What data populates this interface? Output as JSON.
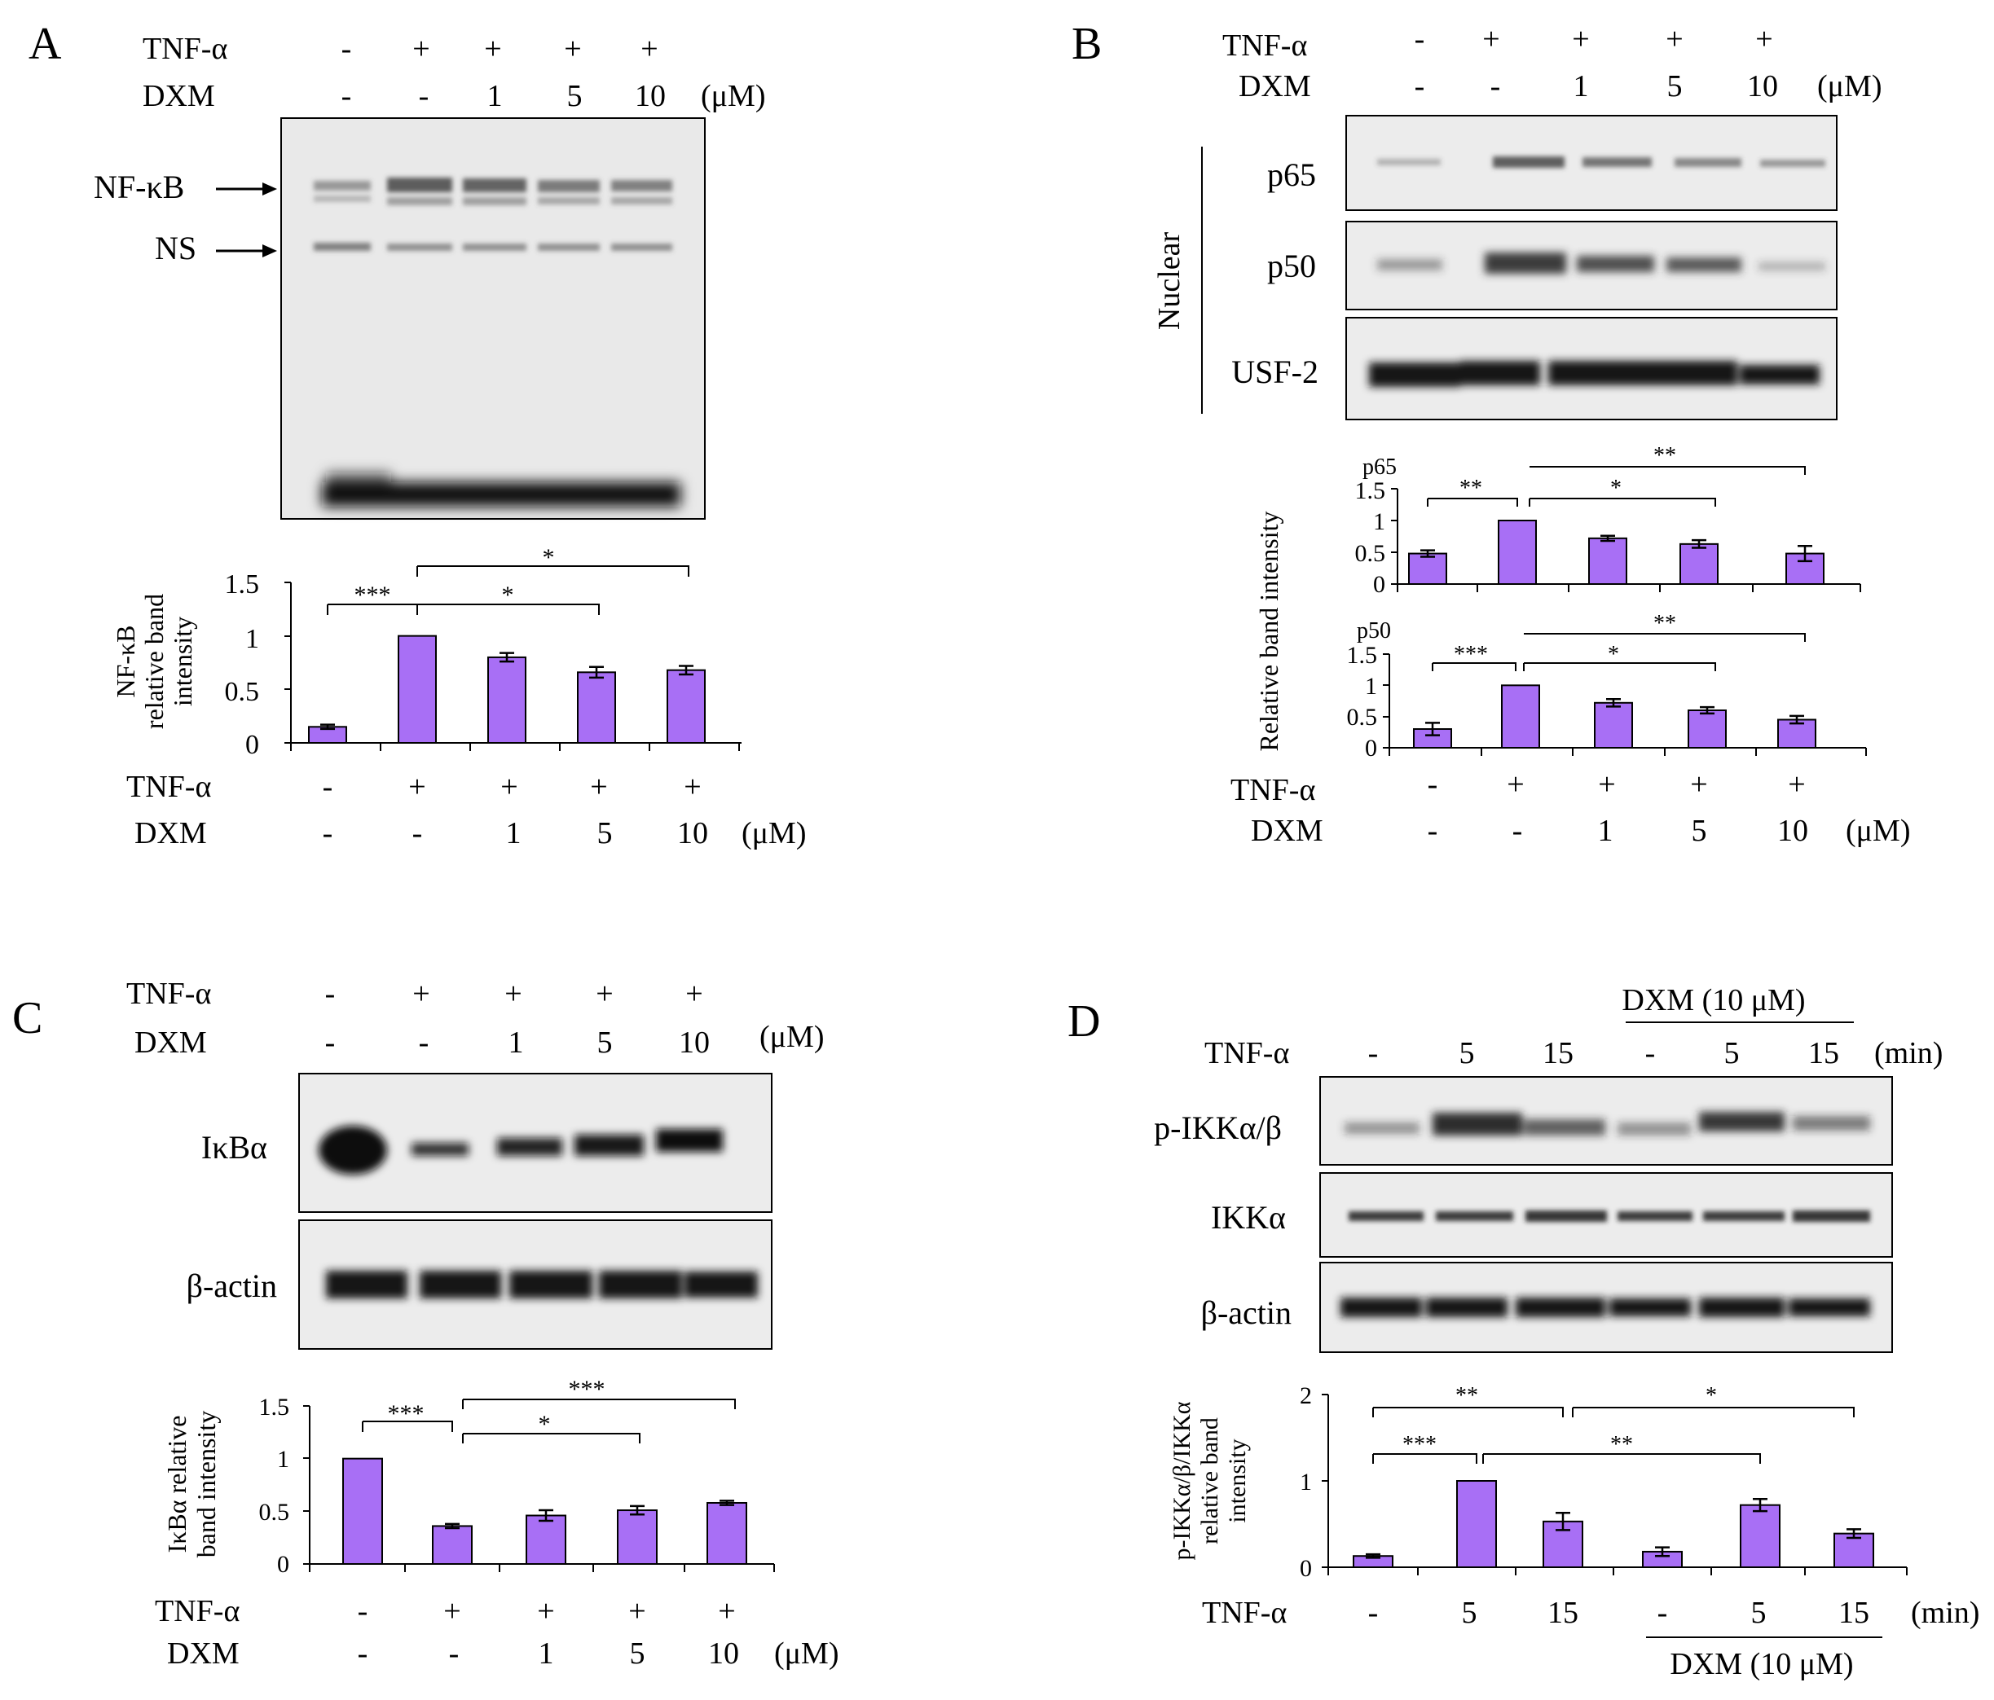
{
  "colors": {
    "bar_fill": "#a86ff5",
    "bar_stroke": "#000000",
    "blot_bg": "#e6e6e6",
    "band": "#1a1a1a"
  },
  "panels": {
    "A": {
      "letter": "A",
      "header": {
        "row1_label": "TNF-α",
        "row1": [
          "-",
          "+",
          "+",
          "+",
          "+"
        ],
        "row2_label": "DXM",
        "row2": [
          "-",
          "-",
          "1",
          "5",
          "10"
        ],
        "unit": "(μM)"
      },
      "band_labels": [
        "NF-κB",
        "NS"
      ],
      "ylabel": [
        "NF-κB",
        "relative band",
        "intensity"
      ],
      "xrow1_label": "TNF-α",
      "xrow1": [
        "-",
        "+",
        "+",
        "+",
        "+"
      ],
      "xrow2_label": "DXM",
      "xrow2": [
        "-",
        "-",
        "1",
        "5",
        "10"
      ],
      "xunit": "(μM)",
      "sig": [
        "***",
        "*",
        "*"
      ]
    },
    "B": {
      "letter": "B",
      "header": {
        "row1_label": "TNF-α",
        "row1": [
          "-",
          "+",
          "+",
          "+",
          "+"
        ],
        "row2_label": "DXM",
        "row2": [
          "-",
          "-",
          "1",
          "5",
          "10"
        ],
        "unit": "(μM)"
      },
      "group_label": "Nuclear",
      "blot_labels": [
        "p65",
        "p50",
        "USF-2"
      ],
      "ylabel": "Relative band intensity",
      "sub_titles": [
        "p65",
        "p50"
      ],
      "xrow1_label": "TNF-α",
      "xrow1": [
        "-",
        "+",
        "+",
        "+",
        "+"
      ],
      "xrow2_label": "DXM",
      "xrow2": [
        "-",
        "-",
        "1",
        "5",
        "10"
      ],
      "xunit": "(μM)",
      "sig_p65": [
        "**",
        "*",
        "**"
      ],
      "sig_p50": [
        "***",
        "*",
        "**"
      ]
    },
    "C": {
      "letter": "C",
      "header": {
        "row1_label": "TNF-α",
        "row1": [
          "-",
          "+",
          "+",
          "+",
          "+"
        ],
        "row2_label": "DXM",
        "row2": [
          "-",
          "-",
          "1",
          "5",
          "10"
        ],
        "unit": "(μM)"
      },
      "blot_labels": [
        "IκBα",
        "β-actin"
      ],
      "ylabel": [
        "IκBα relative",
        "band intensity"
      ],
      "xrow1_label": "TNF-α",
      "xrow1": [
        "-",
        "+",
        "+",
        "+",
        "+"
      ],
      "xrow2_label": "DXM",
      "xrow2": [
        "-",
        "-",
        "1",
        "5",
        "10"
      ],
      "xunit": "(μM)",
      "sig": [
        "***",
        "*",
        "***"
      ]
    },
    "D": {
      "letter": "D",
      "header": {
        "group": "DXM (10 μM)",
        "row1_label": "TNF-α",
        "row1": [
          "-",
          "5",
          "15",
          "-",
          "5",
          "15"
        ],
        "unit": "(min)"
      },
      "blot_labels": [
        "p-IKKα/β",
        "IKKα",
        "β-actin"
      ],
      "ylabel": [
        "p-IKKα/β/IKKα",
        "relative band",
        "intensity"
      ],
      "xrow1_label": "TNF-α",
      "xrow1": [
        "-",
        "5",
        "15",
        "-",
        "5",
        "15"
      ],
      "xunit": "(min)",
      "xgroup": "DXM (10 μM)",
      "sig": [
        "**",
        "*",
        "***",
        "**"
      ]
    }
  },
  "chart_data": [
    {
      "type": "bar",
      "panel": "A",
      "categories": [
        "1",
        "2",
        "3",
        "4",
        "5"
      ],
      "values": [
        0.15,
        1.0,
        0.8,
        0.66,
        0.68
      ],
      "errors": [
        0.02,
        0.0,
        0.04,
        0.05,
        0.04
      ],
      "ylim": [
        0,
        1.5
      ],
      "yticks": [
        "0",
        "0.5",
        "1",
        "1.5"
      ]
    },
    {
      "type": "bar",
      "panel": "B-p65",
      "categories": [
        "1",
        "2",
        "3",
        "4",
        "5"
      ],
      "values": [
        0.48,
        1.0,
        0.72,
        0.63,
        0.48
      ],
      "errors": [
        0.05,
        0.0,
        0.04,
        0.06,
        0.12
      ],
      "ylim": [
        0,
        1.5
      ],
      "yticks": [
        "0",
        "0.5",
        "1",
        "1.5"
      ]
    },
    {
      "type": "bar",
      "panel": "B-p50",
      "categories": [
        "1",
        "2",
        "3",
        "4",
        "5"
      ],
      "values": [
        0.3,
        1.0,
        0.72,
        0.6,
        0.45
      ],
      "errors": [
        0.1,
        0.0,
        0.06,
        0.05,
        0.06
      ],
      "ylim": [
        0,
        1.5
      ],
      "yticks": [
        "0",
        "0.5",
        "1",
        "1.5"
      ]
    },
    {
      "type": "bar",
      "panel": "C",
      "categories": [
        "1",
        "2",
        "3",
        "4",
        "5"
      ],
      "values": [
        1.0,
        0.36,
        0.46,
        0.51,
        0.58
      ],
      "errors": [
        0.0,
        0.02,
        0.05,
        0.04,
        0.02
      ],
      "ylim": [
        0,
        1.5
      ],
      "yticks": [
        "0",
        "0.5",
        "1",
        "1.5"
      ]
    },
    {
      "type": "bar",
      "panel": "D",
      "categories": [
        "1",
        "2",
        "3",
        "4",
        "5",
        "6"
      ],
      "values": [
        0.13,
        1.0,
        0.53,
        0.18,
        0.72,
        0.39
      ],
      "errors": [
        0.02,
        0.0,
        0.1,
        0.05,
        0.07,
        0.05
      ],
      "ylim": [
        0,
        2
      ],
      "yticks": [
        "0",
        "1",
        "2"
      ]
    }
  ]
}
